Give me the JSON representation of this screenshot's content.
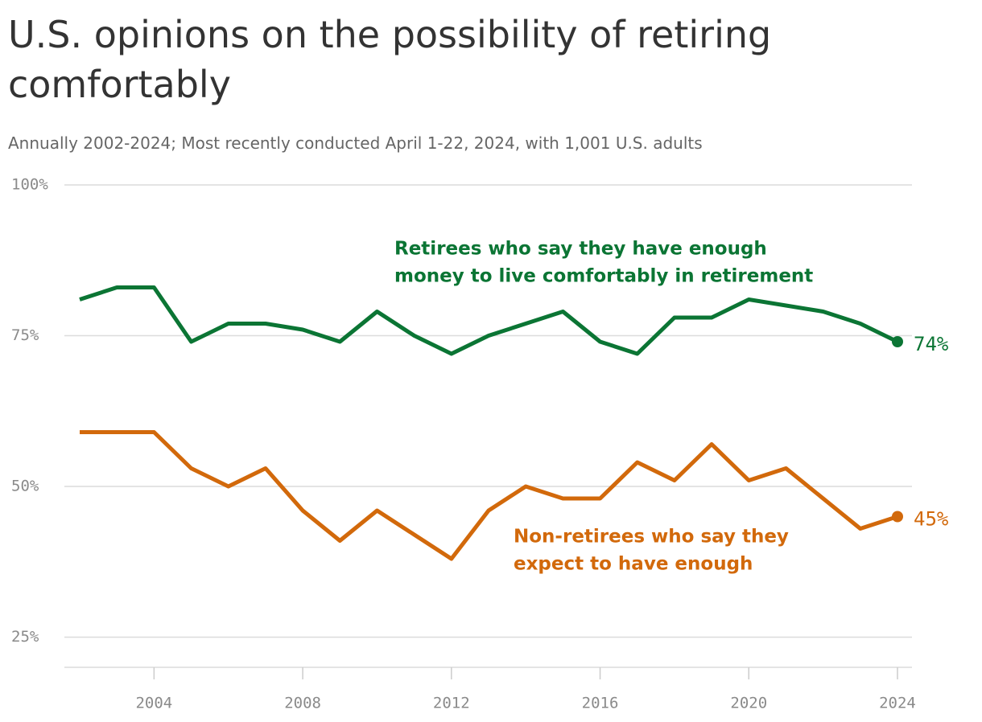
{
  "chart_data": {
    "type": "line",
    "title": "U.S. opinions on the possibility of retiring comfortably",
    "subtitle": "Annually 2002-2024; Most recently conducted April 1-22, 2024, with 1,001 U.S. adults",
    "x": [
      2002,
      2003,
      2004,
      2005,
      2006,
      2007,
      2008,
      2009,
      2010,
      2011,
      2012,
      2013,
      2014,
      2015,
      2016,
      2017,
      2018,
      2019,
      2020,
      2021,
      2022,
      2023,
      2024
    ],
    "series": [
      {
        "name": [
          "Retirees who say they have enough",
          "money to live comfortably in retirement"
        ],
        "color": "#0b7534",
        "values": [
          81,
          83,
          83,
          74,
          77,
          77,
          76,
          74,
          79,
          75,
          72,
          75,
          77,
          79,
          74,
          72,
          78,
          78,
          81,
          80,
          79,
          77,
          74
        ],
        "end_label": "74%"
      },
      {
        "name": [
          "Non-retirees who say they",
          "expect to have enough"
        ],
        "color": "#d2690b",
        "values": [
          59,
          59,
          59,
          53,
          50,
          53,
          46,
          41,
          46,
          42,
          38,
          46,
          50,
          48,
          48,
          54,
          51,
          57,
          51,
          53,
          48,
          43,
          45
        ],
        "end_label": "45%"
      }
    ],
    "xlim": [
      2002,
      2024
    ],
    "xticks": [
      2004,
      2008,
      2012,
      2016,
      2020,
      2024
    ],
    "ylim": [
      20,
      100
    ],
    "yticks": [
      {
        "value": 25,
        "label": "25%"
      },
      {
        "value": 50,
        "label": "50%"
      },
      {
        "value": 75,
        "label": "75%"
      },
      {
        "value": 100,
        "label": "100%"
      }
    ],
    "grid": true
  }
}
